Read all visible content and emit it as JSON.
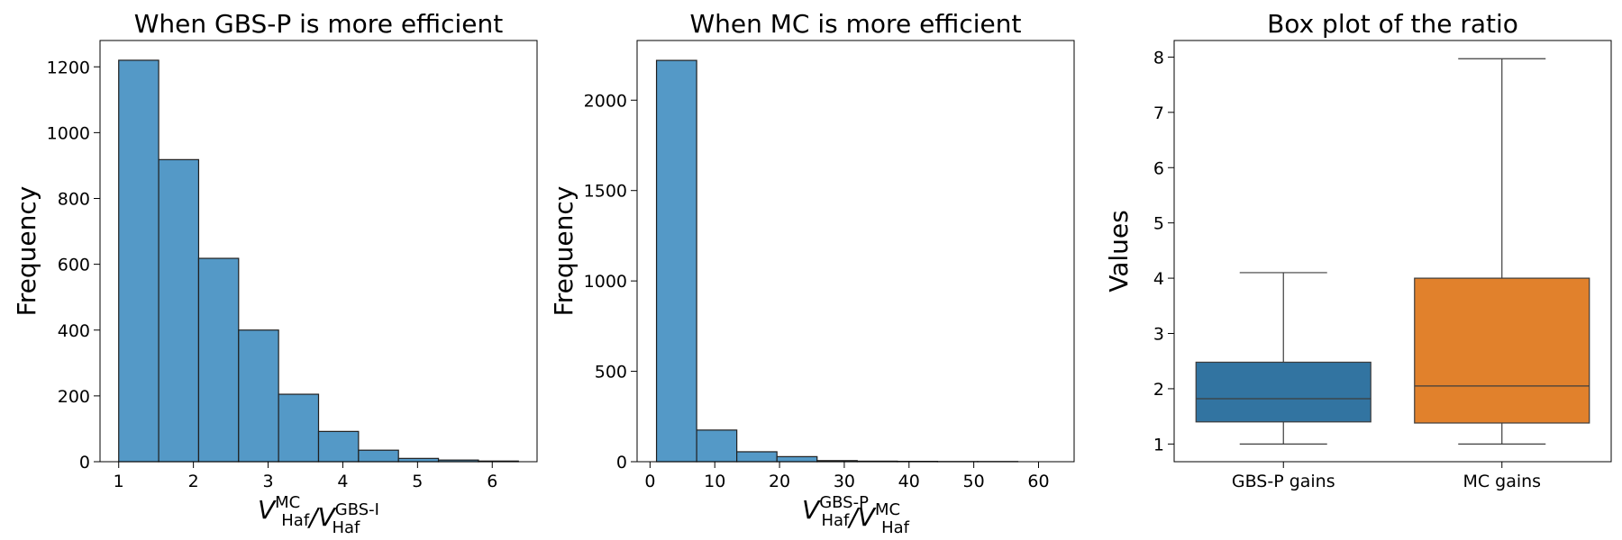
{
  "chart_data": [
    {
      "type": "histogram",
      "title": "When GBS-P is more efficient",
      "ylabel": "Frequency",
      "xlabel": {
        "num": "V",
        "num_sup": "MC",
        "num_sub": "Haf",
        "sep": "/",
        "den": "V",
        "den_sup": "GBS-I",
        "den_sub": "Haf"
      },
      "xlim": [
        0.75,
        6.6
      ],
      "ylim": [
        0,
        1280
      ],
      "xticks": [
        1,
        2,
        3,
        4,
        5,
        6
      ],
      "yticks": [
        0,
        200,
        400,
        600,
        800,
        1000,
        1200
      ],
      "bins": [
        {
          "x0": 1.0,
          "x1": 1.535,
          "count": 1220
        },
        {
          "x0": 1.535,
          "x1": 2.07,
          "count": 918
        },
        {
          "x0": 2.07,
          "x1": 2.605,
          "count": 618
        },
        {
          "x0": 2.605,
          "x1": 3.14,
          "count": 400
        },
        {
          "x0": 3.14,
          "x1": 3.675,
          "count": 205
        },
        {
          "x0": 3.675,
          "x1": 4.21,
          "count": 92
        },
        {
          "x0": 4.21,
          "x1": 4.745,
          "count": 35
        },
        {
          "x0": 4.745,
          "x1": 5.28,
          "count": 10
        },
        {
          "x0": 5.28,
          "x1": 5.815,
          "count": 5
        },
        {
          "x0": 5.815,
          "x1": 6.35,
          "count": 2
        }
      ],
      "bar_color": "#5499c7"
    },
    {
      "type": "histogram",
      "title": "When MC is more efficient",
      "ylabel": "Frequency",
      "xlabel": {
        "num": "V",
        "num_sup": "GBS-P",
        "num_sub": "Haf",
        "sep": "/",
        "den": "V",
        "den_sup": "MC",
        "den_sub": "Haf"
      },
      "xlim": [
        -2.0,
        65.5
      ],
      "ylim": [
        0,
        2330
      ],
      "xticks": [
        0,
        10,
        20,
        30,
        40,
        50,
        60
      ],
      "yticks": [
        0,
        500,
        1000,
        1500,
        2000
      ],
      "bins": [
        {
          "x0": 1.0,
          "x1": 7.2,
          "count": 2220
        },
        {
          "x0": 7.2,
          "x1": 13.4,
          "count": 175
        },
        {
          "x0": 13.4,
          "x1": 19.6,
          "count": 55
        },
        {
          "x0": 19.6,
          "x1": 25.8,
          "count": 28
        },
        {
          "x0": 25.8,
          "x1": 32.0,
          "count": 6
        },
        {
          "x0": 32.0,
          "x1": 38.2,
          "count": 3
        },
        {
          "x0": 38.2,
          "x1": 44.4,
          "count": 2
        },
        {
          "x0": 44.4,
          "x1": 50.6,
          "count": 1
        },
        {
          "x0": 50.6,
          "x1": 56.8,
          "count": 1
        },
        {
          "x0": 56.8,
          "x1": 63.0,
          "count": 0
        }
      ],
      "bar_color": "#5499c7"
    },
    {
      "type": "box",
      "title": "Box plot of the ratio",
      "ylabel": "Values",
      "ylim": [
        0.68,
        8.3
      ],
      "yticks": [
        1,
        2,
        3,
        4,
        5,
        6,
        7,
        8
      ],
      "categories": [
        "GBS-P gains",
        "MC gains"
      ],
      "boxes": [
        {
          "name": "GBS-P gains",
          "whisker_low": 1.0,
          "q1": 1.4,
          "median": 1.82,
          "q3": 2.48,
          "whisker_high": 4.1,
          "color": "#3274a1"
        },
        {
          "name": "MC gains",
          "whisker_low": 1.0,
          "q1": 1.38,
          "median": 2.05,
          "q3": 4.0,
          "whisker_high": 7.97,
          "color": "#e1812c"
        }
      ]
    }
  ]
}
